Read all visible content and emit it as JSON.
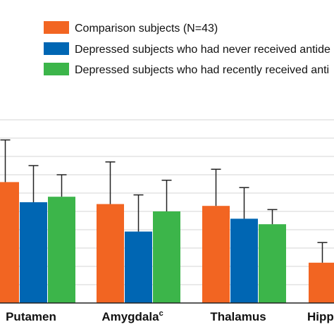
{
  "chart_data": {
    "type": "bar",
    "categories": [
      {
        "label": "Putamen",
        "sup": ""
      },
      {
        "label": "Amygdala",
        "sup": "c"
      },
      {
        "label": "Thalamus",
        "sup": ""
      },
      {
        "label": "Hipp",
        "sup": ""
      }
    ],
    "series": [
      {
        "name": "Comparison subjects (N=43)",
        "color": "#f26522",
        "values": [
          66,
          54,
          53,
          22
        ],
        "errors": [
          23,
          23,
          20,
          11
        ]
      },
      {
        "name": "Depressed subjects who had never received antide",
        "color": "#0066b3",
        "values": [
          55,
          39,
          46,
          null
        ],
        "errors": [
          20,
          20,
          17,
          null
        ]
      },
      {
        "name": "Depressed subjects who had recently received anti",
        "color": "#3cb54a",
        "values": [
          58,
          50,
          43,
          null
        ],
        "errors": [
          12,
          17,
          8,
          null
        ]
      }
    ],
    "ylim": [
      0,
      100
    ],
    "grid": true,
    "legend": "top"
  }
}
